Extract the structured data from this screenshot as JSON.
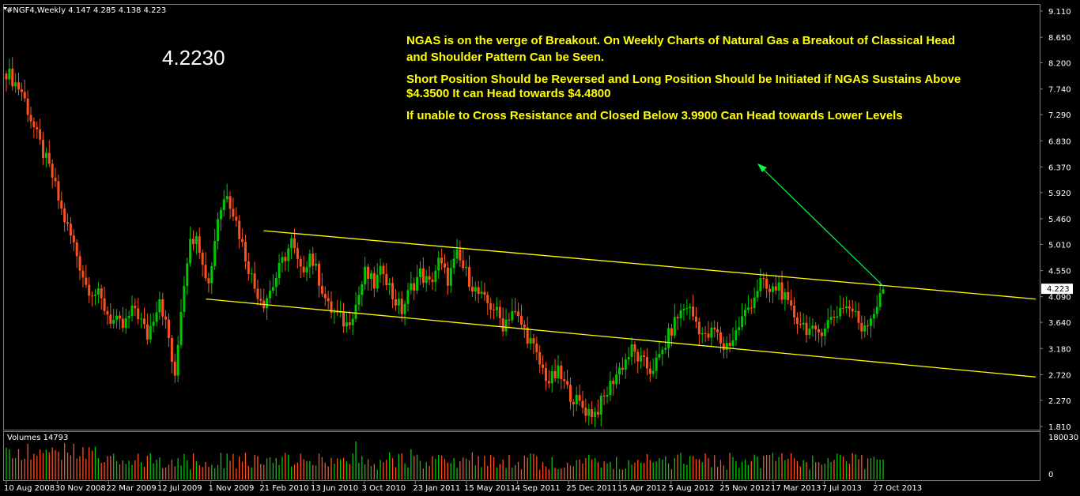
{
  "header": {
    "symbol_line": "#NGF4,Weekly  4.147 4.285 4.138 4.223"
  },
  "big_price": "4.2230",
  "annotations": {
    "line1": "NGAS is on the verge of Breakout. On Weekly Charts of Natural Gas a Breakout of Classical Head",
    "line2": "and Shoulder Pattern Can be Seen.",
    "line3": "Short Position Should be Reversed and Long Position Should be Initiated if NGAS Sustains Above",
    "line4": "$4.3500 It can Head towards $4.4800",
    "line5": "If unable to Cross Resistance and Closed Below 3.9900 Can Head towards Lower Levels"
  },
  "volume_panel": {
    "label": "Volumes 14793",
    "ticks": [
      "180030",
      "0"
    ]
  },
  "colors": {
    "bull": "#00c800",
    "bear": "#ff5020",
    "trend": "#ffff00",
    "arrow": "#00ff44",
    "axis": "#ffffff",
    "grid_border": "#808080",
    "price_tag_bg": "#ffffff"
  },
  "chart_data": {
    "type": "candlestick",
    "symbol": "#NGF4",
    "timeframe": "Weekly",
    "last": {
      "open": 4.147,
      "high": 4.285,
      "low": 4.138,
      "close": 4.223
    },
    "current_price_label": "4.223",
    "y_ticks": [
      "9.110",
      "8.650",
      "8.200",
      "7.740",
      "7.290",
      "6.830",
      "6.370",
      "5.920",
      "5.460",
      "5.010",
      "4.550",
      "4.090",
      "3.640",
      "3.180",
      "2.720",
      "2.270",
      "1.810"
    ],
    "ylim": [
      1.81,
      9.11
    ],
    "x_ticks": [
      "10 Aug 2008",
      "30 Nov 2008",
      "22 Mar 2009",
      "12 Jul 2009",
      "1 Nov 2009",
      "21 Feb 2010",
      "13 Jun 2010",
      "3 Oct 2010",
      "23 Jan 2011",
      "15 May 2011",
      "4 Sep 2011",
      "25 Dec 2011",
      "15 Apr 2012",
      "5 Aug 2012",
      "25 Nov 2012",
      "17 Mar 2013",
      "7 Jul 2013",
      "27 Oct 2013"
    ],
    "close_anchors": [
      [
        0,
        8.05
      ],
      [
        5,
        7.7
      ],
      [
        10,
        6.9
      ],
      [
        15,
        6.2
      ],
      [
        18,
        5.6
      ],
      [
        22,
        5.0
      ],
      [
        26,
        4.3
      ],
      [
        30,
        4.1
      ],
      [
        34,
        3.7
      ],
      [
        38,
        3.55
      ],
      [
        42,
        3.9
      ],
      [
        46,
        3.4
      ],
      [
        50,
        4.1
      ],
      [
        53,
        3.35
      ],
      [
        55,
        2.6
      ],
      [
        57,
        3.9
      ],
      [
        60,
        5.2
      ],
      [
        63,
        5.0
      ],
      [
        66,
        4.3
      ],
      [
        69,
        5.5
      ],
      [
        72,
        5.95
      ],
      [
        75,
        5.4
      ],
      [
        78,
        4.8
      ],
      [
        81,
        4.25
      ],
      [
        84,
        4.0
      ],
      [
        87,
        4.3
      ],
      [
        90,
        4.7
      ],
      [
        93,
        5.05
      ],
      [
        96,
        4.5
      ],
      [
        99,
        4.85
      ],
      [
        102,
        4.4
      ],
      [
        105,
        3.9
      ],
      [
        108,
        3.75
      ],
      [
        111,
        3.6
      ],
      [
        114,
        3.95
      ],
      [
        117,
        4.5
      ],
      [
        120,
        4.3
      ],
      [
        123,
        4.6
      ],
      [
        126,
        4.1
      ],
      [
        129,
        3.85
      ],
      [
        132,
        4.25
      ],
      [
        135,
        4.5
      ],
      [
        138,
        4.3
      ],
      [
        141,
        4.7
      ],
      [
        144,
        4.4
      ],
      [
        147,
        4.8
      ],
      [
        150,
        4.5
      ],
      [
        153,
        4.2
      ],
      [
        156,
        4.0
      ],
      [
        159,
        3.9
      ],
      [
        162,
        3.6
      ],
      [
        165,
        3.85
      ],
      [
        168,
        3.6
      ],
      [
        171,
        3.3
      ],
      [
        174,
        2.9
      ],
      [
        177,
        2.6
      ],
      [
        180,
        2.75
      ],
      [
        183,
        2.45
      ],
      [
        186,
        2.25
      ],
      [
        189,
        2.1
      ],
      [
        192,
        2.05
      ],
      [
        195,
        2.3
      ],
      [
        198,
        2.65
      ],
      [
        201,
        2.9
      ],
      [
        204,
        3.15
      ],
      [
        207,
        2.95
      ],
      [
        210,
        2.8
      ],
      [
        213,
        3.0
      ],
      [
        216,
        3.4
      ],
      [
        219,
        3.75
      ],
      [
        222,
        3.95
      ],
      [
        225,
        3.65
      ],
      [
        228,
        3.35
      ],
      [
        231,
        3.5
      ],
      [
        234,
        3.2
      ],
      [
        237,
        3.35
      ],
      [
        240,
        3.7
      ],
      [
        243,
        4.0
      ],
      [
        246,
        4.35
      ],
      [
        249,
        4.15
      ],
      [
        252,
        4.3
      ],
      [
        255,
        3.9
      ],
      [
        258,
        3.7
      ],
      [
        261,
        3.55
      ],
      [
        264,
        3.4
      ],
      [
        267,
        3.6
      ],
      [
        270,
        3.75
      ],
      [
        273,
        3.95
      ],
      [
        276,
        3.85
      ],
      [
        279,
        3.55
      ],
      [
        282,
        3.75
      ],
      [
        285,
        4.05
      ],
      [
        286,
        4.22
      ]
    ],
    "volume_max": 180030,
    "trend_lines": [
      {
        "name": "upper channel",
        "from": [
          0.25,
          5.25
        ],
        "to": [
          1.0,
          4.05
        ]
      },
      {
        "name": "lower channel",
        "from": [
          0.194,
          4.05
        ],
        "to": [
          1.0,
          2.68
        ]
      }
    ]
  }
}
